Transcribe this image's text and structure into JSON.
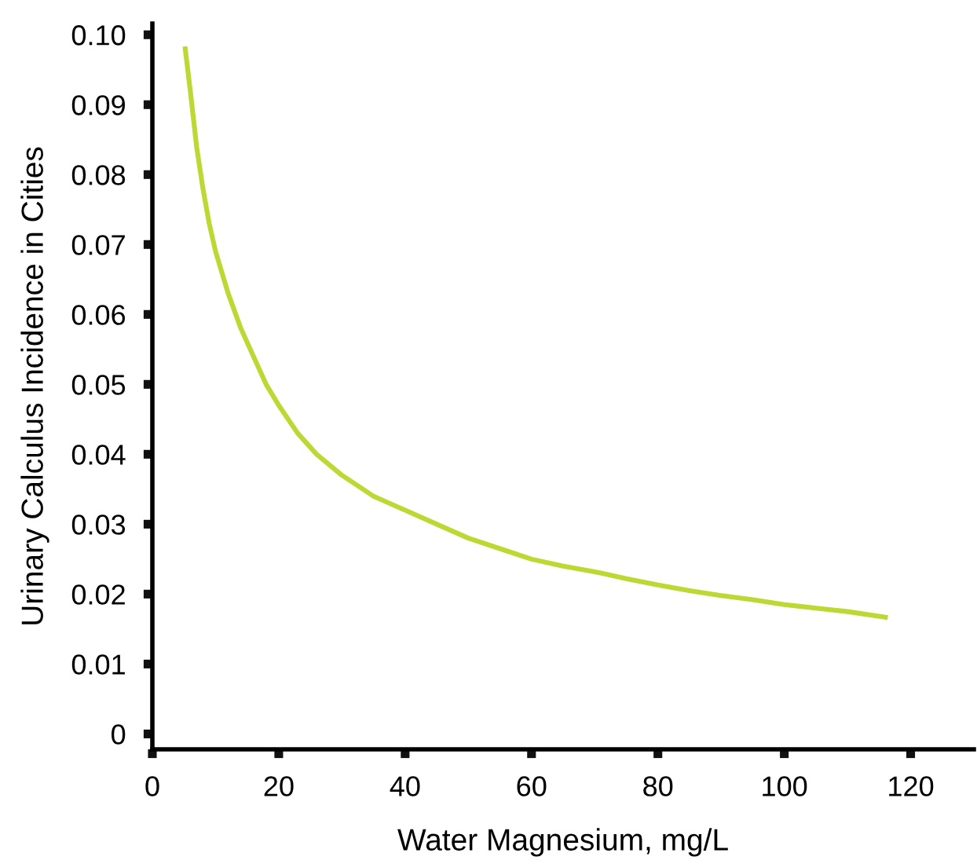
{
  "chart_data": {
    "type": "line",
    "xlabel": "Water Magnesium, mg/L",
    "ylabel": "Urinary Calculus Incidence in Cities",
    "x": [
      5.2,
      6,
      7,
      8,
      9,
      10,
      12,
      14,
      16,
      18,
      20,
      23,
      26,
      30,
      35,
      40,
      45,
      50,
      55,
      60,
      65,
      70,
      75,
      80,
      85,
      90,
      95,
      100,
      105,
      110,
      116
    ],
    "series": [
      {
        "color": "#bcd833",
        "values": [
          0.098,
          0.092,
          0.084,
          0.078,
          0.073,
          0.069,
          0.063,
          0.058,
          0.054,
          0.05,
          0.047,
          0.043,
          0.04,
          0.037,
          0.034,
          0.032,
          0.03,
          0.028,
          0.0265,
          0.025,
          0.024,
          0.0232,
          0.0222,
          0.0213,
          0.0205,
          0.0198,
          0.0192,
          0.0185,
          0.018,
          0.0175,
          0.0167
        ]
      }
    ],
    "xlim": [
      0,
      130
    ],
    "ylim": [
      -0.0022,
      0.1016
    ],
    "xticks": [
      0,
      20,
      40,
      60,
      80,
      100,
      120
    ],
    "yticks": [
      0,
      0.01,
      0.02,
      0.03,
      0.04,
      0.05,
      0.06,
      0.07,
      0.08,
      0.09,
      {
        "value": 0.1,
        "label": "0.10"
      }
    ],
    "grid": false,
    "legend": false,
    "marker": "none",
    "line_style": "solid"
  }
}
